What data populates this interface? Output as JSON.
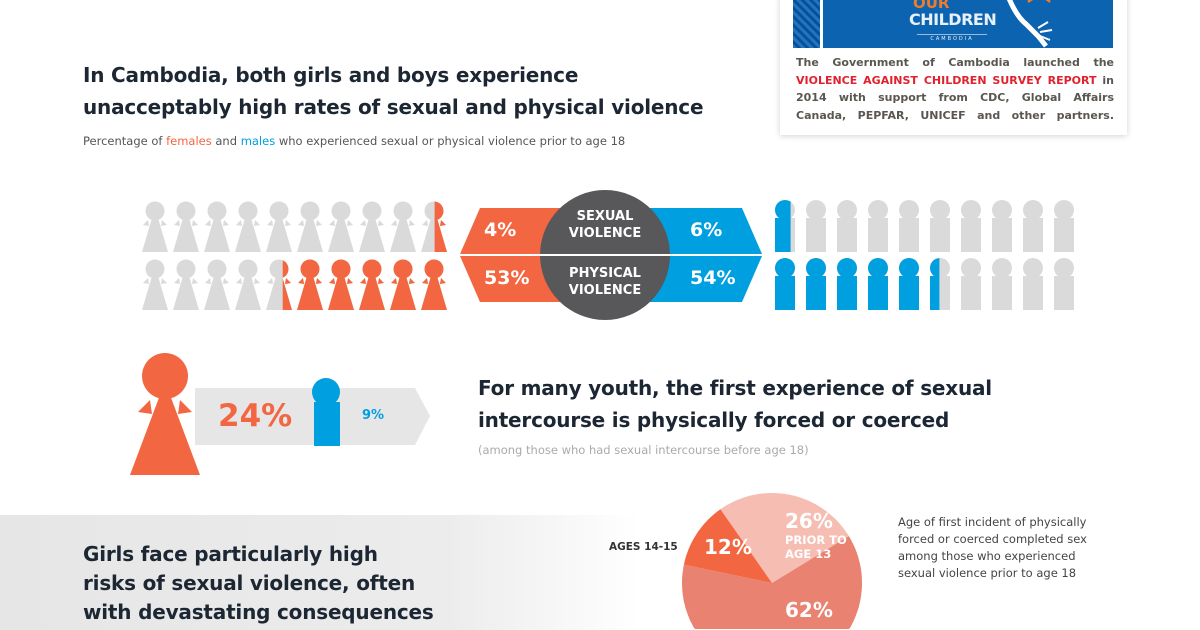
{
  "card": {
    "logo_line1": "OUR",
    "logo_line2": "CHILDREN",
    "logo_line3": "CAMBODIA",
    "text_before": "The Government of Cambodia launched the",
    "text_highlight": "VIOLENCE AGAINST CHILDREN SURVEY REPORT",
    "text_after": "in 2014 with support from CDC, Global Affairs Canada, PEPFAR, UNICEF and other partners."
  },
  "section1": {
    "title_line1": "In Cambodia, both girls and boys experience",
    "title_line2": "unacceptably high rates of sexual and physical violence",
    "subtitle_pre": "Percentage of ",
    "subtitle_females": "females",
    "subtitle_mid": " and ",
    "subtitle_males": "males",
    "subtitle_post": " who experienced sexual or physical violence prior to age 18",
    "sexual_label_1": "SEXUAL",
    "sexual_label_2": "VIOLENCE",
    "physical_label_1": "PHYSICAL",
    "physical_label_2": "VIOLENCE",
    "female_sexual": "4%",
    "female_physical": "53%",
    "male_sexual": "6%",
    "male_physical": "54%"
  },
  "section2": {
    "female_value": "24%",
    "male_value": "9%",
    "title_line1": "For many youth, the first experience of sexual",
    "title_line2": "intercourse is physically forced or coerced",
    "note": "(among those who had sexual intercourse before age 18)"
  },
  "section3": {
    "title_line1": "Girls face particularly high",
    "title_line2": "risks of sexual violence, often",
    "title_line3": "with devastating consequences",
    "pie_desc_1": "Age of first incident of physically",
    "pie_desc_2": "forced or coerced completed sex",
    "pie_desc_3": "among those who experienced",
    "pie_desc_4": "sexual violence prior to age 18",
    "label_ages1415": "AGES 14-15",
    "label_prior_1": "PRIOR TO",
    "label_prior_2": "AGE 13"
  },
  "colors": {
    "female": "#f26641",
    "male": "#009fdf",
    "neutral": "#dadada",
    "circle": "#58585a"
  },
  "chart_data": [
    {
      "type": "bar",
      "subtype": "pictogram",
      "categories": [
        "SEXUAL VIOLENCE",
        "PHYSICAL VIOLENCE"
      ],
      "series": [
        {
          "name": "females",
          "values": [
            4,
            53
          ]
        },
        {
          "name": "males",
          "values": [
            6,
            54
          ]
        }
      ],
      "unit": "%",
      "figures_per_row": 10
    },
    {
      "type": "pie",
      "slices": [
        {
          "label": "PRIOR TO AGE 13",
          "value": 26,
          "color": "#f6bdb2"
        },
        {
          "label": "",
          "value": 62,
          "color": "#e98270"
        },
        {
          "label": "AGES 14-15",
          "value": 12,
          "color": "#f26641"
        }
      ],
      "value_labels": [
        "26%",
        "62%",
        "12%"
      ]
    }
  ]
}
